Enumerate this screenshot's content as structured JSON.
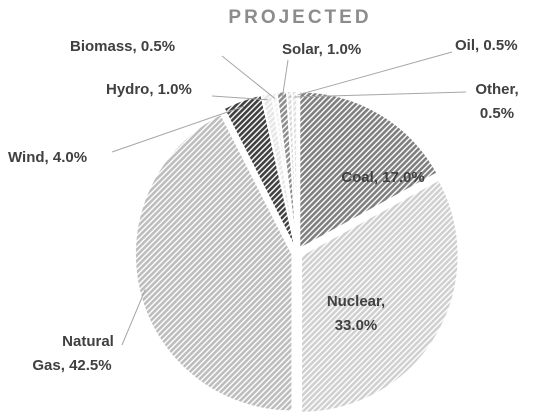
{
  "chart_data": {
    "type": "pie",
    "title": "PROJECTED",
    "values": [
      17,
      33,
      42.5,
      4,
      1,
      0.5,
      1,
      0.5,
      0.5
    ],
    "value_labels": [
      [
        "Coal, 17.0%"
      ],
      [
        "Nuclear,",
        "33.0%"
      ],
      [
        "Natural",
        "Gas, 42.5%"
      ],
      [
        "Wind, 4.0%"
      ],
      [
        "Hydro, 1.0%"
      ],
      [
        "Biomass, 0.5%"
      ],
      [
        "Solar, 1.0%"
      ],
      [
        "Oil, 0.5%"
      ],
      [
        "Other,",
        "0.5%"
      ]
    ],
    "colors": [
      "#7f7f7f",
      "#d0d0d0",
      "#bdbdbd",
      "#404040",
      "#e6e6e6",
      "#f2f2f2",
      "#8c8c8c",
      "#d9d9d9",
      "#e0e0e0"
    ]
  }
}
